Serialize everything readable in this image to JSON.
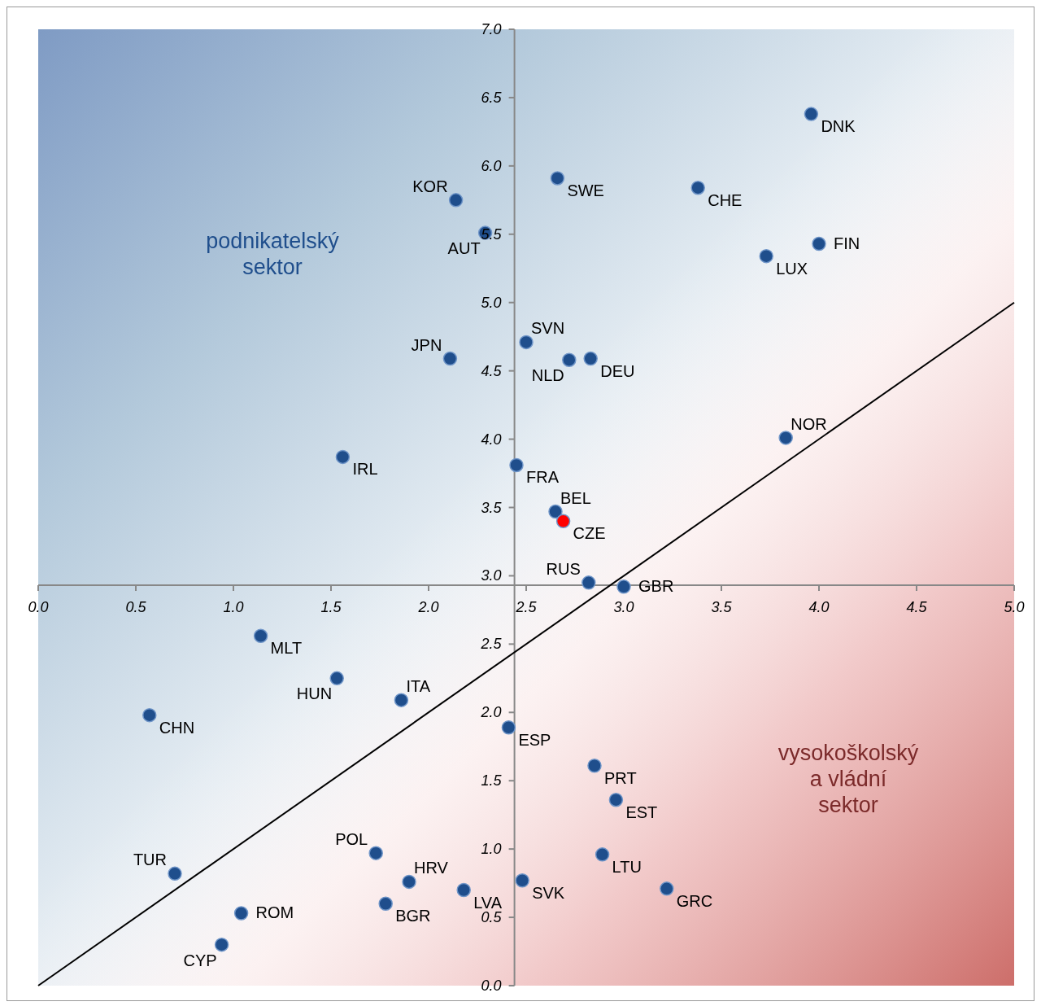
{
  "chart_data": {
    "type": "scatter",
    "xlim": [
      0,
      5
    ],
    "xticks": [
      {
        "value": 0,
        "label": "0.0"
      },
      {
        "value": 0.5,
        "label": "0.5"
      },
      {
        "value": 1,
        "label": "1.0"
      },
      {
        "value": 1.5,
        "label": "1.5"
      },
      {
        "value": 2,
        "label": "2.0"
      },
      {
        "value": 2.5,
        "label": "2.5"
      },
      {
        "value": 3,
        "label": "3.0"
      },
      {
        "value": 3.5,
        "label": "3.5"
      },
      {
        "value": 4,
        "label": "4.0"
      },
      {
        "value": 4.5,
        "label": "4.5"
      },
      {
        "value": 5,
        "label": "5.0"
      }
    ],
    "ylim": [
      0,
      7
    ],
    "yticks": [
      {
        "value": 0,
        "label": "0.0"
      },
      {
        "value": 0.5,
        "label": "0.5"
      },
      {
        "value": 1,
        "label": "1.0"
      },
      {
        "value": 1.5,
        "label": "1.5"
      },
      {
        "value": 2,
        "label": "2.0"
      },
      {
        "value": 2.5,
        "label": "2.5"
      },
      {
        "value": 3,
        "label": "3.0"
      },
      {
        "value": 3.5,
        "label": "3.5"
      },
      {
        "value": 4,
        "label": "4.0"
      },
      {
        "value": 4.5,
        "label": "4.5"
      },
      {
        "value": 5,
        "label": "5.0"
      },
      {
        "value": 5.5,
        "label": "5.5"
      },
      {
        "value": 6,
        "label": "6.0"
      },
      {
        "value": 6.5,
        "label": "6.5"
      },
      {
        "value": 7,
        "label": "7.0"
      }
    ],
    "grid": false,
    "marker": "circle",
    "annotations": [
      "podnikatelský sektor",
      "vysokoškolský a vládní sektor"
    ],
    "series": [
      {
        "type": "line",
        "color": "#000000",
        "x": [
          0,
          5
        ],
        "values": [
          0,
          5
        ],
        "marker": "none"
      },
      {
        "name": "DNK",
        "color": "#1f4e8c",
        "x": [
          3.96
        ],
        "values": [
          6.38
        ]
      },
      {
        "name": "SWE",
        "color": "#1f4e8c",
        "x": [
          2.66
        ],
        "values": [
          5.91
        ]
      },
      {
        "name": "CHE",
        "color": "#1f4e8c",
        "x": [
          3.38
        ],
        "values": [
          5.84
        ]
      },
      {
        "name": "KOR",
        "color": "#1f4e8c",
        "x": [
          2.14
        ],
        "values": [
          5.75
        ]
      },
      {
        "name": "AUT",
        "color": "#1f4e8c",
        "x": [
          2.29
        ],
        "values": [
          5.51
        ]
      },
      {
        "name": "FIN",
        "color": "#1f4e8c",
        "x": [
          4.0
        ],
        "values": [
          5.43
        ]
      },
      {
        "name": "LUX",
        "color": "#1f4e8c",
        "x": [
          3.73
        ],
        "values": [
          5.34
        ]
      },
      {
        "name": "SVN",
        "color": "#1f4e8c",
        "x": [
          2.5
        ],
        "values": [
          4.71
        ]
      },
      {
        "name": "JPN",
        "color": "#1f4e8c",
        "x": [
          2.11
        ],
        "values": [
          4.59
        ]
      },
      {
        "name": "NLD",
        "color": "#1f4e8c",
        "x": [
          2.72
        ],
        "values": [
          4.58
        ]
      },
      {
        "name": "DEU",
        "color": "#1f4e8c",
        "x": [
          2.83
        ],
        "values": [
          4.59
        ]
      },
      {
        "name": "NOR",
        "color": "#1f4e8c",
        "x": [
          3.83
        ],
        "values": [
          4.01
        ]
      },
      {
        "name": "IRL",
        "color": "#1f4e8c",
        "x": [
          1.56
        ],
        "values": [
          3.87
        ]
      },
      {
        "name": "FRA",
        "color": "#1f4e8c",
        "x": [
          2.45
        ],
        "values": [
          3.81
        ]
      },
      {
        "name": "BEL",
        "color": "#1f4e8c",
        "x": [
          2.65
        ],
        "values": [
          3.47
        ]
      },
      {
        "name": "CZE",
        "color": "#ff0000",
        "x": [
          2.69
        ],
        "values": [
          3.4
        ]
      },
      {
        "name": "RUS",
        "color": "#1f4e8c",
        "x": [
          2.82
        ],
        "values": [
          2.95
        ]
      },
      {
        "name": "GBR",
        "color": "#1f4e8c",
        "x": [
          3.0
        ],
        "values": [
          2.92
        ]
      },
      {
        "name": "MLT",
        "color": "#1f4e8c",
        "x": [
          1.14
        ],
        "values": [
          2.56
        ]
      },
      {
        "name": "HUN",
        "color": "#1f4e8c",
        "x": [
          1.53
        ],
        "values": [
          2.25
        ]
      },
      {
        "name": "ITA",
        "color": "#1f4e8c",
        "x": [
          1.86
        ],
        "values": [
          2.09
        ]
      },
      {
        "name": "CHN",
        "color": "#1f4e8c",
        "x": [
          0.57
        ],
        "values": [
          1.98
        ]
      },
      {
        "name": "ESP",
        "color": "#1f4e8c",
        "x": [
          2.41
        ],
        "values": [
          1.89
        ]
      },
      {
        "name": "PRT",
        "color": "#1f4e8c",
        "x": [
          2.85
        ],
        "values": [
          1.61
        ]
      },
      {
        "name": "EST",
        "color": "#1f4e8c",
        "x": [
          2.96
        ],
        "values": [
          1.36
        ]
      },
      {
        "name": "POL",
        "color": "#1f4e8c",
        "x": [
          1.73
        ],
        "values": [
          0.97
        ]
      },
      {
        "name": "LTU",
        "color": "#1f4e8c",
        "x": [
          2.89
        ],
        "values": [
          0.96
        ]
      },
      {
        "name": "TUR",
        "color": "#1f4e8c",
        "x": [
          0.7
        ],
        "values": [
          0.82
        ]
      },
      {
        "name": "HRV",
        "color": "#1f4e8c",
        "x": [
          1.9
        ],
        "values": [
          0.76
        ]
      },
      {
        "name": "SVK",
        "color": "#1f4e8c",
        "x": [
          2.48
        ],
        "values": [
          0.77
        ]
      },
      {
        "name": "LVA",
        "color": "#1f4e8c",
        "x": [
          2.18
        ],
        "values": [
          0.7
        ]
      },
      {
        "name": "GRC",
        "color": "#1f4e8c",
        "x": [
          3.22
        ],
        "values": [
          0.71
        ]
      },
      {
        "name": "BGR",
        "color": "#1f4e8c",
        "x": [
          1.78
        ],
        "values": [
          0.6
        ]
      },
      {
        "name": "ROM",
        "color": "#1f4e8c",
        "x": [
          1.04
        ],
        "values": [
          0.53
        ]
      },
      {
        "name": "CYP",
        "color": "#1f4e8c",
        "x": [
          0.94
        ],
        "values": [
          0.3
        ]
      }
    ]
  }
}
